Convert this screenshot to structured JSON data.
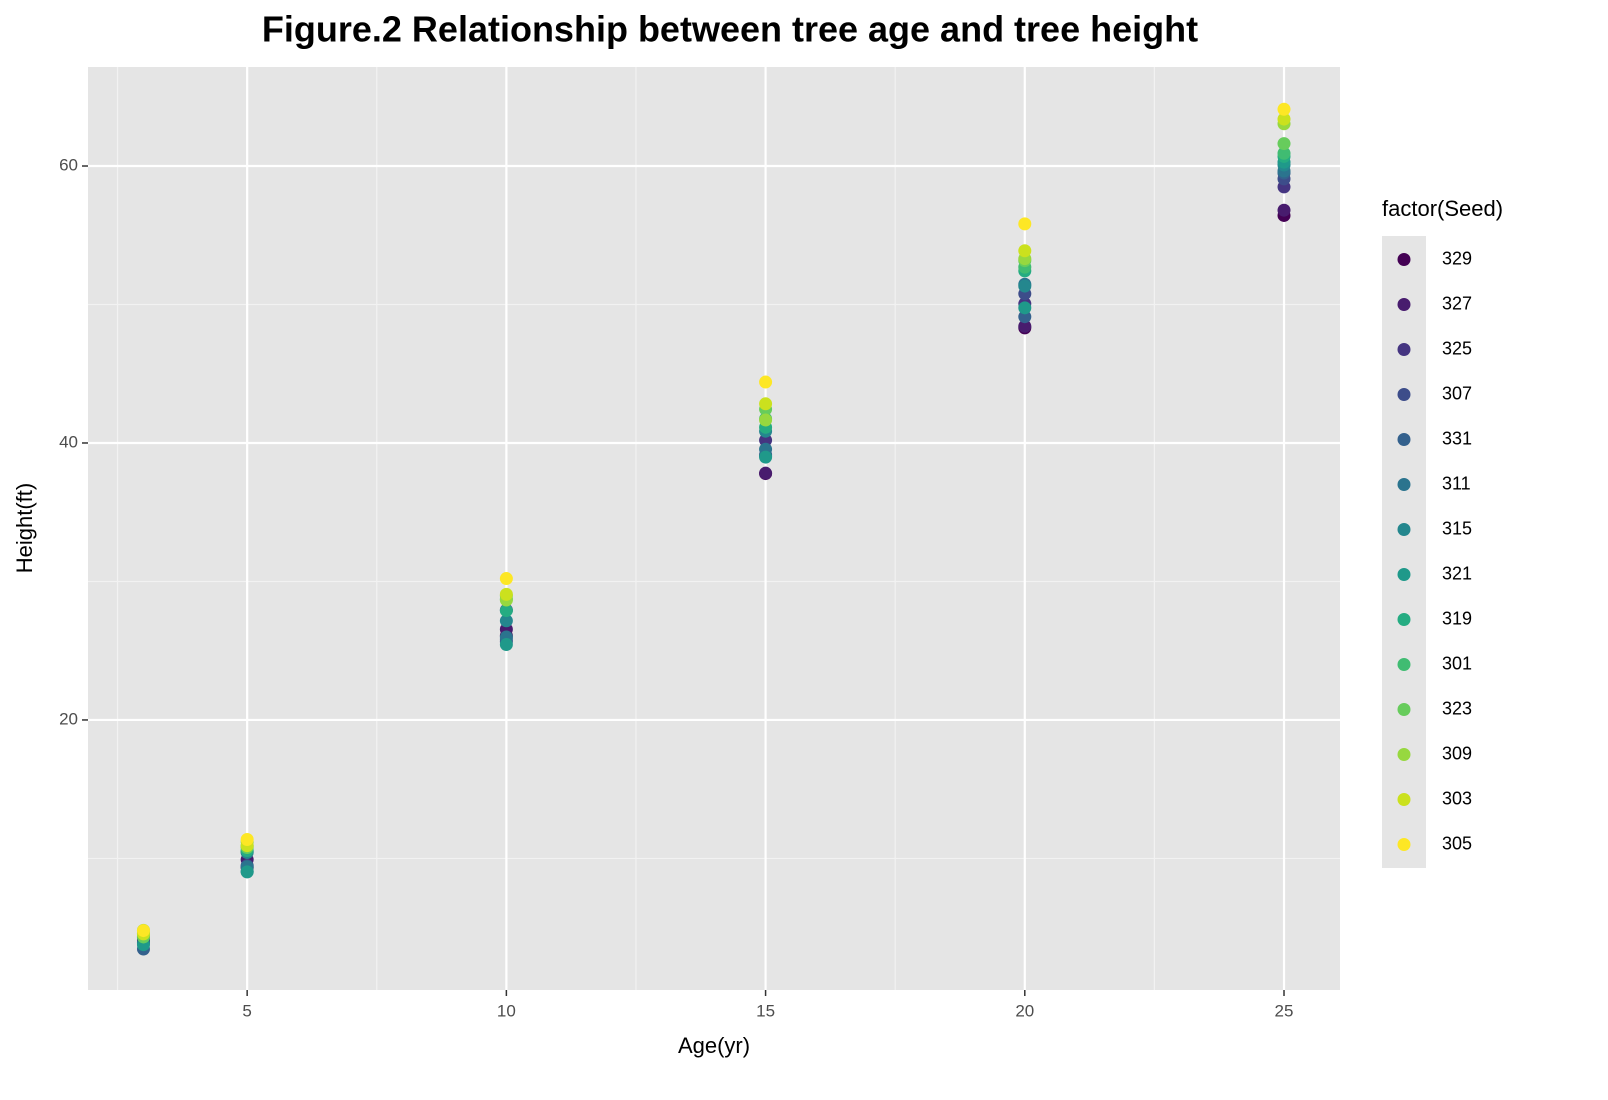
{
  "chart_data": {
    "type": "scatter",
    "title": "Figure.2 Relationship between tree age and tree height",
    "x_label": "Age(yr)",
    "y_label": "Height(ft)",
    "legend_title": "factor(Seed)",
    "x": [
      3,
      5,
      10,
      15,
      20,
      25
    ],
    "xlim": [
      1.93,
      26.08
    ],
    "xticks": [
      5,
      10,
      15,
      20,
      25
    ],
    "ylim": [
      0.5,
      67.15
    ],
    "yticks": [
      20,
      40,
      60
    ],
    "grid": true,
    "legend": "right",
    "series": [
      {
        "name": "329",
        "color": "#440154",
        "values": [
          3.93,
          9.34,
          26.08,
          37.79,
          48.31,
          56.43
        ]
      },
      {
        "name": "327",
        "color": "#481C6E",
        "values": [
          4.12,
          9.92,
          26.54,
          37.82,
          48.43,
          56.81
        ]
      },
      {
        "name": "325",
        "color": "#453581",
        "values": [
          4.38,
          10.48,
          27.93,
          40.2,
          50.06,
          58.49
        ]
      },
      {
        "name": "307",
        "color": "#3D4D8A",
        "values": [
          3.91,
          9.48,
          25.66,
          39.07,
          50.78,
          59.07
        ]
      },
      {
        "name": "331",
        "color": "#34618D",
        "values": [
          3.46,
          9.05,
          25.85,
          39.15,
          49.12,
          59.49
        ]
      },
      {
        "name": "311",
        "color": "#2B748E",
        "values": [
          3.88,
          9.4,
          25.99,
          39.55,
          51.46,
          59.64
        ]
      },
      {
        "name": "315",
        "color": "#24878E",
        "values": [
          4.32,
          10.43,
          27.16,
          40.85,
          51.33,
          60.07
        ]
      },
      {
        "name": "321",
        "color": "#1F998A",
        "values": [
          3.77,
          9.03,
          25.45,
          38.98,
          49.76,
          60.28
        ]
      },
      {
        "name": "319",
        "color": "#25AC82",
        "values": [
          4.57,
          10.57,
          27.9,
          41.13,
          52.43,
          60.69
        ]
      },
      {
        "name": "301",
        "color": "#40BC72",
        "values": [
          4.51,
          10.89,
          28.72,
          41.74,
          52.7,
          60.92
        ]
      },
      {
        "name": "323",
        "color": "#67CC5C",
        "values": [
          4.33,
          10.79,
          28.97,
          42.44,
          53.17,
          61.62
        ]
      },
      {
        "name": "309",
        "color": "#97D83F",
        "values": [
          4.81,
          11.2,
          28.66,
          41.66,
          53.31,
          63.05
        ]
      },
      {
        "name": "303",
        "color": "#CBE11E",
        "values": [
          4.55,
          10.92,
          29.07,
          42.83,
          53.88,
          63.39
        ]
      },
      {
        "name": "305",
        "color": "#FDE725",
        "values": [
          4.79,
          11.37,
          30.21,
          44.4,
          55.82,
          64.1
        ]
      }
    ]
  }
}
